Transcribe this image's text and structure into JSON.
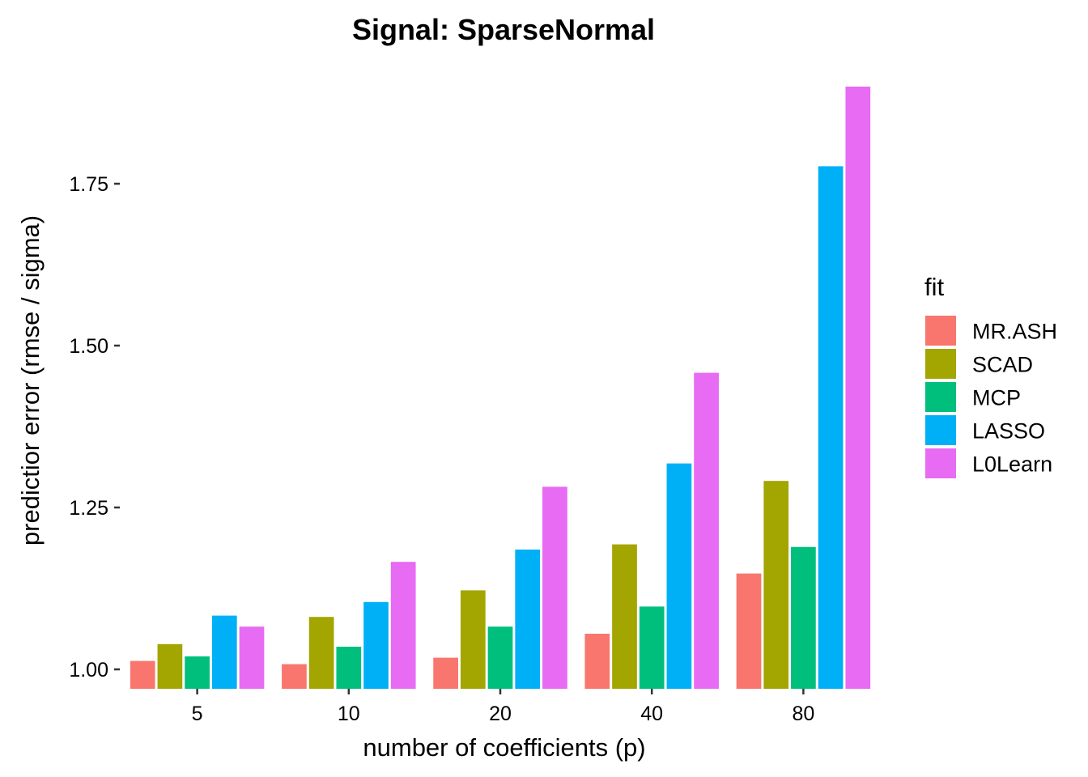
{
  "chart_data": {
    "type": "bar",
    "title": "Signal: SparseNormal",
    "xlabel": "number of coefficients (p)",
    "ylabel": "predictior error (rmse / sigma)",
    "categories": [
      "5",
      "10",
      "20",
      "40",
      "80"
    ],
    "ylim": [
      0.97,
      1.905
    ],
    "yticks": [
      1.0,
      1.25,
      1.5,
      1.75
    ],
    "ytick_labels": [
      "1.00",
      "1.25",
      "1.50",
      "1.75"
    ],
    "grid": false,
    "legend": {
      "title": "fit",
      "position": "right"
    },
    "series": [
      {
        "name": "MR.ASH",
        "color": "#F8766D",
        "values": [
          1.013,
          1.008,
          1.018,
          1.055,
          1.148
        ]
      },
      {
        "name": "SCAD",
        "color": "#A3A500",
        "values": [
          1.039,
          1.081,
          1.122,
          1.193,
          1.291
        ]
      },
      {
        "name": "MCP",
        "color": "#00BF7D",
        "values": [
          1.02,
          1.035,
          1.066,
          1.097,
          1.189
        ]
      },
      {
        "name": "LASSO",
        "color": "#00B0F6",
        "values": [
          1.083,
          1.104,
          1.185,
          1.318,
          1.777
        ]
      },
      {
        "name": "L0Learn",
        "color": "#E76BF3",
        "values": [
          1.066,
          1.166,
          1.282,
          1.458,
          1.9
        ]
      }
    ]
  }
}
